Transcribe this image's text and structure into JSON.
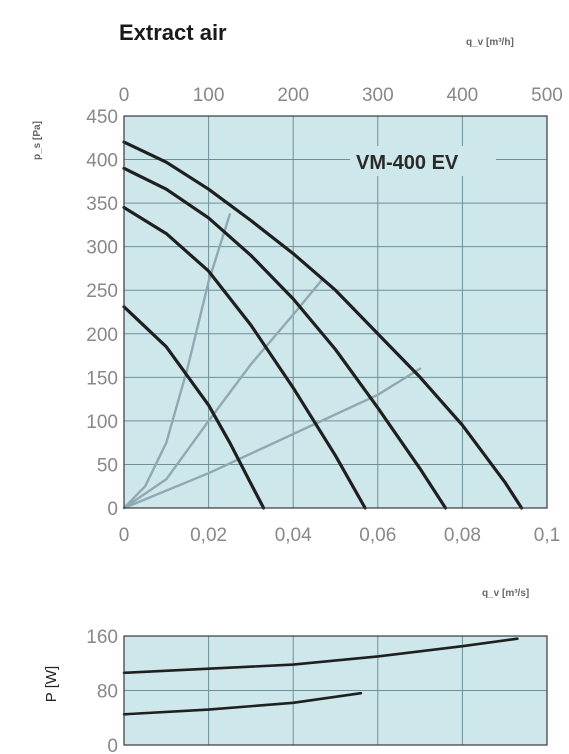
{
  "colors": {
    "plot_bg": "#cde7ea",
    "grid": "#6f8f97",
    "curve": "#1f1f1f",
    "system_curve": "#8fa9b2",
    "tick_text": "#888888"
  },
  "chart_data": [
    {
      "type": "line",
      "title": "Extract air",
      "annotation": "VM-400 EV",
      "xlabel": "q_v [m³/s]",
      "x2label": "q_v [m³/h]",
      "ylabel": "p_s [Pa]",
      "xlim": [
        0,
        0.1
      ],
      "ylim": [
        0,
        450
      ],
      "x_ticks": [
        "0",
        "0,02",
        "0,04",
        "0,06",
        "0,08",
        "0,1"
      ],
      "x_tick_values": [
        0,
        0.02,
        0.04,
        0.06,
        0.08,
        0.1
      ],
      "x2_ticks": [
        "0",
        "100",
        "200",
        "300",
        "400",
        "500"
      ],
      "x2_tick_values": [
        0,
        100,
        200,
        300,
        400,
        500
      ],
      "y_ticks": [
        "0",
        "50",
        "100",
        "150",
        "200",
        "250",
        "300",
        "350",
        "400",
        "450"
      ],
      "y_tick_values": [
        0,
        50,
        100,
        150,
        200,
        250,
        300,
        350,
        400,
        450
      ],
      "grid": true,
      "series": [
        {
          "kind": "fan",
          "x": [
            0,
            0.01,
            0.02,
            0.025,
            0.03,
            0.033
          ],
          "y": [
            231,
            185,
            118,
            75,
            28,
            0
          ]
        },
        {
          "kind": "fan",
          "x": [
            0,
            0.01,
            0.02,
            0.03,
            0.04,
            0.05,
            0.057
          ],
          "y": [
            345,
            315,
            272,
            210,
            138,
            60,
            0
          ]
        },
        {
          "kind": "fan",
          "x": [
            0,
            0.01,
            0.02,
            0.03,
            0.04,
            0.05,
            0.06,
            0.07,
            0.076
          ],
          "y": [
            390,
            366,
            333,
            290,
            240,
            182,
            115,
            45,
            0
          ]
        },
        {
          "kind": "fan",
          "x": [
            0,
            0.01,
            0.02,
            0.03,
            0.04,
            0.05,
            0.06,
            0.07,
            0.08,
            0.09,
            0.094
          ],
          "y": [
            420,
            397,
            366,
            330,
            292,
            250,
            200,
            150,
            95,
            30,
            0
          ]
        },
        {
          "kind": "system",
          "x": [
            0,
            0.005,
            0.01,
            0.015,
            0.02,
            0.025
          ],
          "y": [
            0,
            25,
            75,
            160,
            260,
            337
          ]
        },
        {
          "kind": "system",
          "x": [
            0,
            0.01,
            0.02,
            0.03,
            0.04,
            0.047
          ],
          "y": [
            0,
            33,
            100,
            165,
            222,
            263
          ]
        },
        {
          "kind": "system",
          "x": [
            0,
            0.02,
            0.04,
            0.06,
            0.07
          ],
          "y": [
            0,
            40,
            85,
            130,
            160
          ]
        }
      ]
    },
    {
      "type": "line",
      "ylabel": "P [W]",
      "xlim": [
        0,
        0.1
      ],
      "ylim": [
        0,
        160
      ],
      "y_ticks": [
        "0",
        "80",
        "160"
      ],
      "y_tick_values": [
        0,
        80,
        160
      ],
      "grid": true,
      "series": [
        {
          "x": [
            0,
            0.02,
            0.04,
            0.06,
            0.08,
            0.093
          ],
          "y": [
            106,
            112,
            118,
            130,
            145,
            156
          ]
        },
        {
          "x": [
            0,
            0.02,
            0.04,
            0.056
          ],
          "y": [
            45,
            52,
            62,
            76
          ]
        }
      ]
    }
  ]
}
